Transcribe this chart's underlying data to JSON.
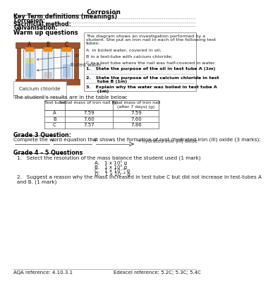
{
  "title": "Corrosion",
  "section1_header": "Key Term definitions (meanings)",
  "corrosion_label": "Corrosion:",
  "sacrificial_label": "Sacrificial method:",
  "galvanisation_label": "Galvanisation:",
  "warmup_header": "Warm up questions",
  "desc_text_line1": "The diagram shows an investigation performed by a",
  "desc_text_line2": "student. She put an iron nail in each of the following test",
  "desc_text_line3": "tubes:",
  "desc_text_line4": "A  in boiled water, covered in oil;",
  "desc_text_line5": "B in a test-tube with calcium chloride;",
  "desc_text_line6": "C in a test tube where the nail was half-covered in water.",
  "q1_text": "1.   State the purpose of the oil in test tube A (1m)",
  "q2_text": "2.   State the purpose of the calcium chloride in test\n       tube B (1m)",
  "q3_text": "3.   Explain why the water was boiled in test tube A\n       (1m)",
  "results_intro": "The student's results are in the table below:",
  "table_headers": [
    "Test tube",
    "Initial mass of iron nail (g)",
    "Final mass of iron nail\n(after 7 days) (g)"
  ],
  "table_data": [
    [
      "A",
      "7.59",
      "7.59"
    ],
    [
      "B",
      "7.60",
      "7.60"
    ],
    [
      "C",
      "7.57",
      "7.86"
    ]
  ],
  "grade3_header": "Grade 3 Question:",
  "grade3_text": "Complete the word equation that shows the formation of rust (hydrated iron (III) oxide (3 marks):",
  "arrow_label": "→ hydrated iron (III) oxide",
  "grade45_header": "Grade 4 – 5 Questions",
  "q_select": "1.   Select the resolution of the mass balance the student used (1 mark)",
  "options": [
    "A.   1 x 10¹ g",
    "B.   1 x 10⁰ g",
    "C.   1 x 10⁻¹ g",
    "D.   1 x 10⁻² g"
  ],
  "q_suggest": "2.   Suggest a reason why the mass increased in test tube C but did not increase in test-tubes A and B. (1 mark)",
  "footer_left": "AQA reference: 4.10.3.1",
  "footer_right": "Edexcel reference: 5.2C; 5.3C; 5.4C",
  "bg_color": "#ffffff",
  "text_color": "#1a1a1a",
  "bold_color": "#000000",
  "line_color": "#aaaaaa",
  "table_border": "#555555",
  "rack_color": "#A0522D",
  "rack_edge": "#7B3F00",
  "tube_fill": "#ddeeff",
  "water_fill": "#aaccee",
  "oil_fill": "#dddd88",
  "calcium_fill": "#cccccc",
  "nail_color": "#888888",
  "cap_fill": "#ff8800",
  "cap_edge": "#cc6600"
}
